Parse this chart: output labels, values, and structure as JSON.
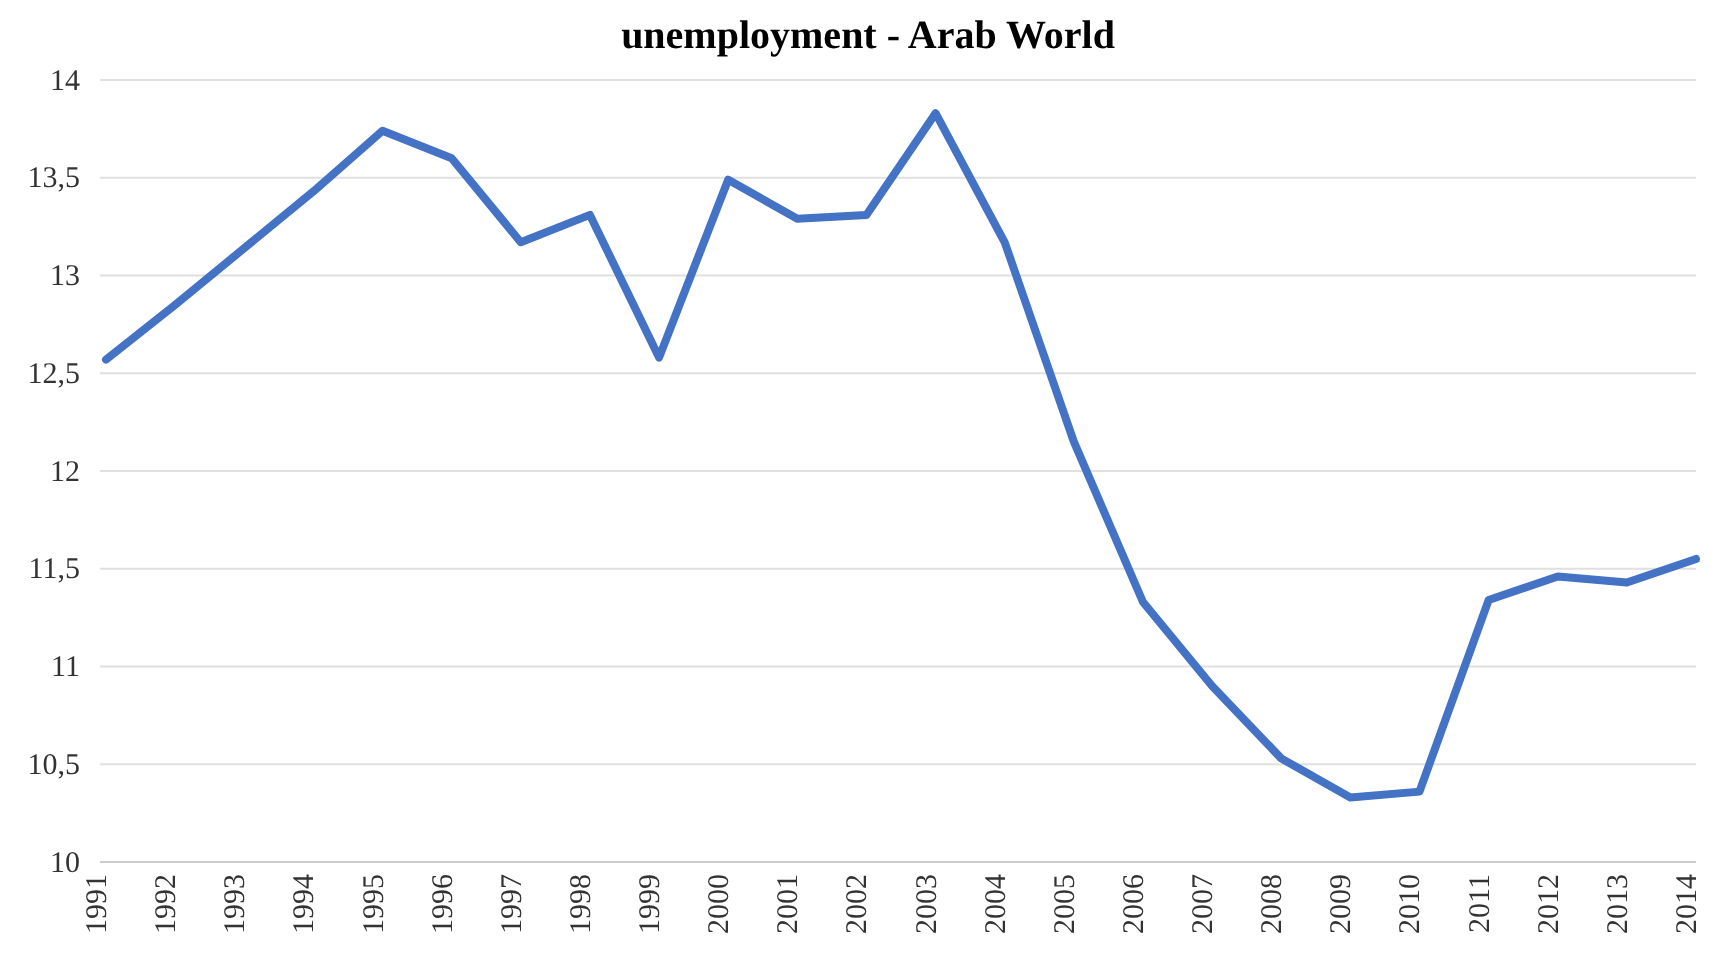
{
  "chart_data": {
    "type": "line",
    "title": "unemployment - Arab World",
    "categories": [
      "1991",
      "1992",
      "1993",
      "1994",
      "1995",
      "1996",
      "1997",
      "1998",
      "1999",
      "2000",
      "2001",
      "2002",
      "2003",
      "2004",
      "2005",
      "2006",
      "2007",
      "2008",
      "2009",
      "2010",
      "2011",
      "2012",
      "2013",
      "2014"
    ],
    "series": [
      {
        "color": "#4472c4",
        "values": [
          12.57,
          12.85,
          13.14,
          13.43,
          13.74,
          13.6,
          13.17,
          13.31,
          12.58,
          13.49,
          13.29,
          13.31,
          13.83,
          13.17,
          12.15,
          11.33,
          10.9,
          10.53,
          10.33,
          10.36,
          11.34,
          11.46,
          11.43,
          11.55
        ]
      }
    ],
    "ylim": [
      10,
      14
    ],
    "yticks": [
      10,
      {
        "value": 10.5,
        "label": "10,5"
      },
      11,
      {
        "value": 11.5,
        "label": "11,5"
      },
      12,
      {
        "value": 12.5,
        "label": "12,5"
      },
      13,
      {
        "value": 13.5,
        "label": "13,5"
      },
      14
    ],
    "grid": "y",
    "marker": "none",
    "line_style": "solid"
  }
}
